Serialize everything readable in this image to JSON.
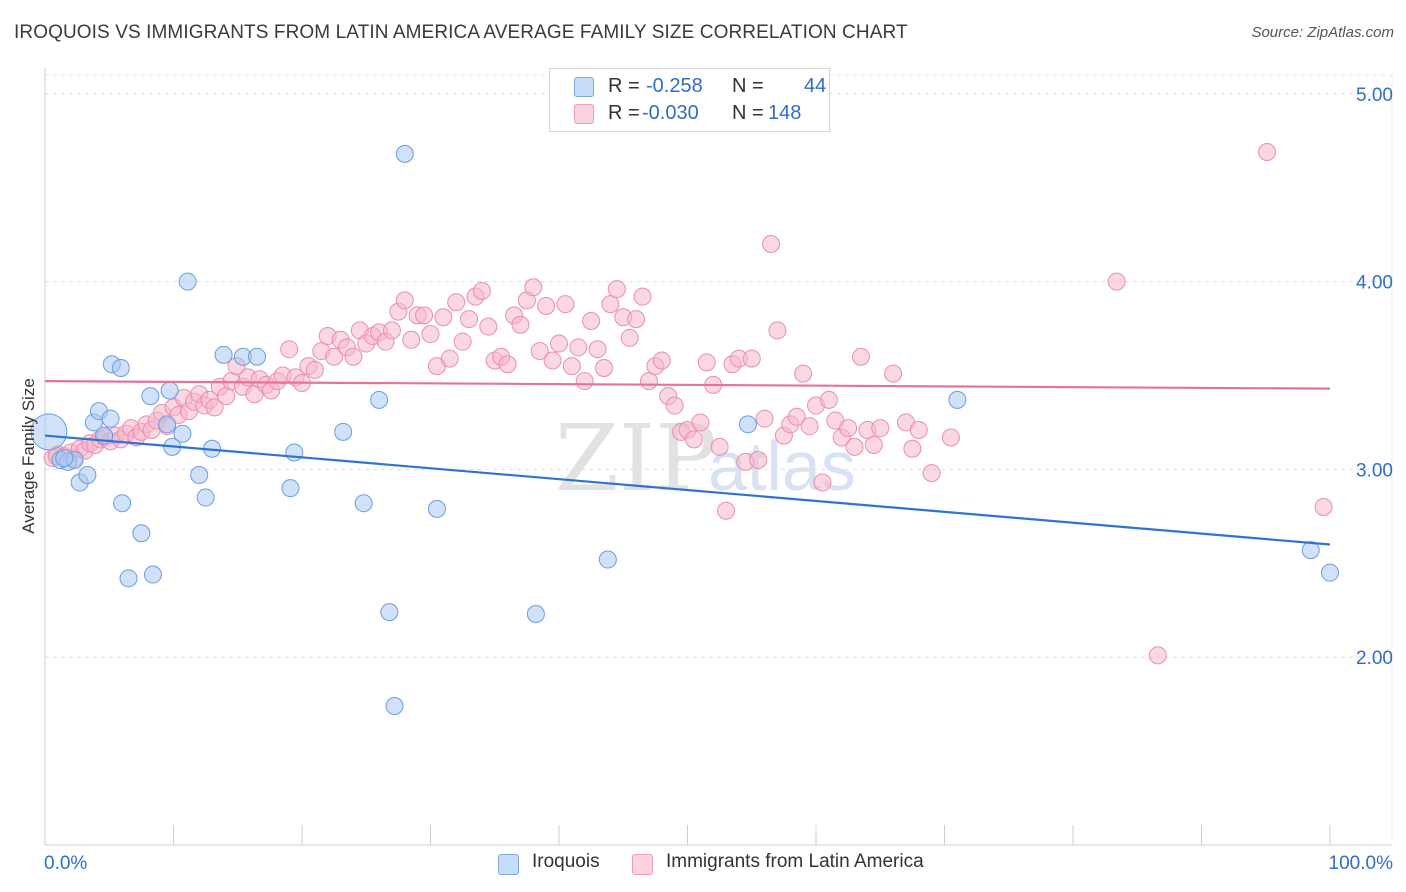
{
  "title": "IROQUOIS VS IMMIGRANTS FROM LATIN AMERICA AVERAGE FAMILY SIZE CORRELATION CHART",
  "source": "Source: ZipAtlas.com",
  "watermark": {
    "zip": "ZIP",
    "atlas": "atlas"
  },
  "stats": [
    {
      "r_label": "R =",
      "r_value": "-0.258",
      "n_label": "N =",
      "n_value": "44",
      "color": "#a9c8f2"
    },
    {
      "r_label": "R =",
      "r_value": "-0.030",
      "n_label": "N =",
      "n_value": "148",
      "color": "#f6b8cc"
    }
  ],
  "legend": [
    {
      "label": "Iroquois",
      "color": "#a9c8f2"
    },
    {
      "label": "Immigrants from Latin America",
      "color": "#f6b8cc"
    }
  ],
  "chart_data": {
    "type": "scatter",
    "title": "IROQUOIS VS IMMIGRANTS FROM LATIN AMERICA AVERAGE FAMILY SIZE CORRELATION CHART",
    "ylabel": "Average Family Size",
    "xlabel": "",
    "x_tick_labels": [
      "0.0%",
      "100.0%"
    ],
    "y_tick_labels": [
      "2.00",
      "3.00",
      "4.00",
      "5.00"
    ],
    "y_ticks": [
      2,
      3,
      4,
      5
    ],
    "xlim": [
      0,
      100
    ],
    "ylim": [
      1.0,
      5.1
    ],
    "grid": true,
    "legend_position": "bottom-center",
    "series": [
      {
        "name": "Iroquois",
        "color": "#a9c8f2",
        "stroke": "#6a9ee0",
        "trend": {
          "x": [
            0,
            100
          ],
          "y": [
            3.18,
            2.6
          ],
          "color": "#2f73d2"
        },
        "points": [
          [
            0.3,
            3.2
          ],
          [
            1.2,
            3.05
          ],
          [
            1.8,
            3.04
          ],
          [
            2.3,
            3.05
          ],
          [
            2.7,
            2.93
          ],
          [
            3.3,
            2.97
          ],
          [
            3.8,
            3.25
          ],
          [
            4.2,
            3.31
          ],
          [
            5.1,
            3.27
          ],
          [
            5.2,
            3.56
          ],
          [
            5.9,
            3.54
          ],
          [
            6.0,
            2.82
          ],
          [
            6.5,
            2.42
          ],
          [
            7.5,
            2.66
          ],
          [
            8.2,
            3.39
          ],
          [
            8.4,
            2.44
          ],
          [
            9.5,
            3.24
          ],
          [
            9.7,
            3.42
          ],
          [
            9.9,
            3.12
          ],
          [
            10.7,
            3.19
          ],
          [
            11.1,
            4.0
          ],
          [
            12.0,
            2.97
          ],
          [
            12.5,
            2.85
          ],
          [
            13.0,
            3.11
          ],
          [
            13.9,
            3.61
          ],
          [
            15.4,
            3.6
          ],
          [
            16.5,
            3.6
          ],
          [
            19.1,
            2.9
          ],
          [
            19.4,
            3.09
          ],
          [
            23.2,
            3.2
          ],
          [
            24.8,
            2.82
          ],
          [
            26.0,
            3.37
          ],
          [
            26.8,
            2.24
          ],
          [
            27.2,
            1.74
          ],
          [
            28.0,
            4.68
          ],
          [
            30.5,
            2.79
          ],
          [
            38.2,
            2.23
          ],
          [
            43.8,
            2.52
          ],
          [
            54.7,
            3.24
          ],
          [
            71.0,
            3.37
          ],
          [
            98.5,
            2.57
          ],
          [
            100.0,
            2.45
          ],
          [
            1.5,
            3.06
          ],
          [
            4.6,
            3.18
          ]
        ]
      },
      {
        "name": "Immigrants from Latin America",
        "color": "#f6b8cc",
        "stroke": "#ea8fae",
        "trend": {
          "x": [
            0,
            100
          ],
          "y": [
            3.47,
            3.43
          ],
          "color": "#e4739c"
        },
        "points": [
          [
            0.6,
            3.06
          ],
          [
            1.0,
            3.08
          ],
          [
            1.5,
            3.07
          ],
          [
            2.0,
            3.09
          ],
          [
            2.3,
            3.06
          ],
          [
            2.7,
            3.11
          ],
          [
            3.1,
            3.1
          ],
          [
            3.5,
            3.14
          ],
          [
            3.9,
            3.13
          ],
          [
            4.3,
            3.16
          ],
          [
            4.7,
            3.17
          ],
          [
            5.1,
            3.15
          ],
          [
            5.5,
            3.18
          ],
          [
            5.9,
            3.16
          ],
          [
            6.3,
            3.19
          ],
          [
            6.7,
            3.22
          ],
          [
            7.1,
            3.17
          ],
          [
            7.5,
            3.2
          ],
          [
            7.9,
            3.24
          ],
          [
            8.3,
            3.21
          ],
          [
            8.7,
            3.26
          ],
          [
            9.1,
            3.3
          ],
          [
            9.5,
            3.23
          ],
          [
            10.0,
            3.33
          ],
          [
            10.4,
            3.29
          ],
          [
            10.8,
            3.38
          ],
          [
            11.2,
            3.31
          ],
          [
            11.6,
            3.36
          ],
          [
            12.0,
            3.4
          ],
          [
            12.4,
            3.34
          ],
          [
            12.8,
            3.37
          ],
          [
            13.2,
            3.33
          ],
          [
            13.6,
            3.44
          ],
          [
            14.1,
            3.39
          ],
          [
            14.5,
            3.47
          ],
          [
            14.9,
            3.55
          ],
          [
            15.4,
            3.44
          ],
          [
            15.8,
            3.49
          ],
          [
            16.3,
            3.4
          ],
          [
            16.7,
            3.48
          ],
          [
            17.2,
            3.45
          ],
          [
            17.6,
            3.42
          ],
          [
            18.1,
            3.47
          ],
          [
            18.5,
            3.5
          ],
          [
            19.0,
            3.64
          ],
          [
            19.5,
            3.49
          ],
          [
            20.0,
            3.46
          ],
          [
            20.5,
            3.55
          ],
          [
            21.0,
            3.53
          ],
          [
            21.5,
            3.63
          ],
          [
            22.0,
            3.71
          ],
          [
            22.5,
            3.6
          ],
          [
            23.0,
            3.69
          ],
          [
            23.5,
            3.65
          ],
          [
            24.0,
            3.6
          ],
          [
            24.5,
            3.74
          ],
          [
            25.0,
            3.67
          ],
          [
            25.5,
            3.71
          ],
          [
            26.0,
            3.73
          ],
          [
            26.5,
            3.68
          ],
          [
            27.0,
            3.74
          ],
          [
            27.5,
            3.84
          ],
          [
            28.0,
            3.9
          ],
          [
            28.5,
            3.69
          ],
          [
            29.0,
            3.82
          ],
          [
            29.5,
            3.82
          ],
          [
            30.0,
            3.72
          ],
          [
            30.5,
            3.55
          ],
          [
            31.0,
            3.81
          ],
          [
            31.5,
            3.59
          ],
          [
            32.0,
            3.89
          ],
          [
            32.5,
            3.68
          ],
          [
            33.0,
            3.8
          ],
          [
            33.5,
            3.92
          ],
          [
            34.0,
            3.95
          ],
          [
            34.5,
            3.76
          ],
          [
            35.0,
            3.58
          ],
          [
            35.5,
            3.6
          ],
          [
            36.0,
            3.56
          ],
          [
            36.5,
            3.82
          ],
          [
            37.0,
            3.77
          ],
          [
            37.5,
            3.9
          ],
          [
            38.0,
            3.97
          ],
          [
            38.5,
            3.63
          ],
          [
            39.0,
            3.87
          ],
          [
            39.5,
            3.58
          ],
          [
            40.0,
            3.67
          ],
          [
            40.5,
            3.88
          ],
          [
            41.0,
            3.55
          ],
          [
            41.5,
            3.65
          ],
          [
            42.0,
            3.47
          ],
          [
            42.5,
            3.79
          ],
          [
            43.0,
            3.64
          ],
          [
            43.5,
            3.54
          ],
          [
            44.0,
            3.88
          ],
          [
            44.5,
            3.96
          ],
          [
            45.0,
            3.81
          ],
          [
            45.5,
            3.7
          ],
          [
            46.0,
            3.8
          ],
          [
            46.5,
            3.92
          ],
          [
            47.0,
            3.47
          ],
          [
            47.5,
            3.55
          ],
          [
            48.0,
            3.58
          ],
          [
            48.5,
            3.39
          ],
          [
            49.0,
            3.34
          ],
          [
            49.5,
            3.2
          ],
          [
            50.0,
            3.21
          ],
          [
            50.5,
            3.16
          ],
          [
            51.0,
            3.25
          ],
          [
            51.5,
            3.57
          ],
          [
            52.0,
            3.45
          ],
          [
            52.5,
            3.12
          ],
          [
            53.0,
            2.78
          ],
          [
            53.5,
            3.56
          ],
          [
            54.0,
            3.59
          ],
          [
            54.5,
            3.04
          ],
          [
            55.0,
            3.59
          ],
          [
            55.5,
            3.05
          ],
          [
            56.0,
            3.27
          ],
          [
            56.5,
            4.2
          ],
          [
            57.0,
            3.74
          ],
          [
            57.5,
            3.18
          ],
          [
            58.0,
            3.24
          ],
          [
            58.5,
            3.28
          ],
          [
            59.0,
            3.51
          ],
          [
            59.5,
            3.23
          ],
          [
            60.0,
            3.34
          ],
          [
            60.5,
            2.93
          ],
          [
            61.0,
            3.37
          ],
          [
            61.5,
            3.26
          ],
          [
            62.0,
            3.17
          ],
          [
            62.5,
            3.22
          ],
          [
            63.0,
            3.12
          ],
          [
            63.5,
            3.6
          ],
          [
            64.0,
            3.21
          ],
          [
            64.5,
            3.13
          ],
          [
            65.0,
            3.22
          ],
          [
            66.0,
            3.51
          ],
          [
            67.0,
            3.25
          ],
          [
            67.5,
            3.11
          ],
          [
            68.0,
            3.21
          ],
          [
            69.0,
            2.98
          ],
          [
            70.5,
            3.17
          ],
          [
            83.4,
            4.0
          ],
          [
            86.6,
            2.01
          ],
          [
            95.1,
            4.69
          ],
          [
            99.5,
            2.8
          ],
          [
            0.9,
            3.07
          ]
        ]
      }
    ]
  }
}
